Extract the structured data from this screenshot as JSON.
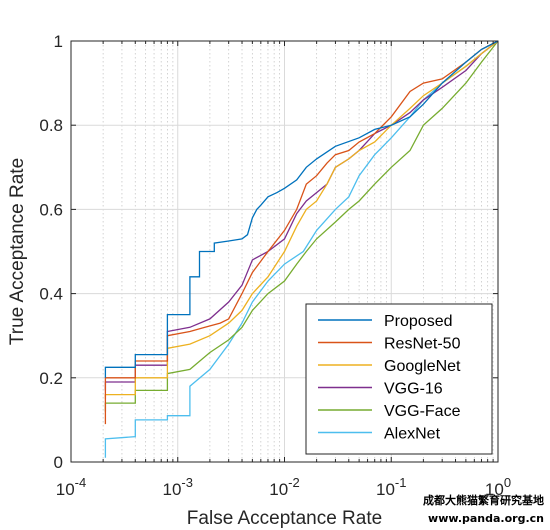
{
  "chart_data": {
    "type": "line",
    "xlabel": "False Acceptance Rate",
    "ylabel": "True Acceptance Rate",
    "xscale": "log",
    "xlim": [
      0.0001,
      1
    ],
    "ylim": [
      0,
      1
    ],
    "x_ticks": [
      {
        "value": 0.0001,
        "base": "10",
        "exp": "-4"
      },
      {
        "value": 0.001,
        "base": "10",
        "exp": "-3"
      },
      {
        "value": 0.01,
        "base": "10",
        "exp": "-2"
      },
      {
        "value": 0.1,
        "base": "10",
        "exp": "-1"
      },
      {
        "value": 1,
        "base": "10",
        "exp": "0"
      }
    ],
    "y_ticks": [
      {
        "value": 0,
        "label": "0"
      },
      {
        "value": 0.2,
        "label": "0.2"
      },
      {
        "value": 0.4,
        "label": "0.4"
      },
      {
        "value": 0.6,
        "label": "0.6"
      },
      {
        "value": 0.8,
        "label": "0.8"
      },
      {
        "value": 1,
        "label": "1"
      }
    ],
    "grid": true,
    "legend_position": "bottom-right",
    "series": [
      {
        "name": "Proposed",
        "color": "#0072BD",
        "points": [
          [
            0.00021,
            0.2
          ],
          [
            0.00021,
            0.225
          ],
          [
            0.0004,
            0.225
          ],
          [
            0.0004,
            0.255
          ],
          [
            0.0008,
            0.255
          ],
          [
            0.0008,
            0.35
          ],
          [
            0.0013,
            0.35
          ],
          [
            0.0013,
            0.44
          ],
          [
            0.0016,
            0.44
          ],
          [
            0.0016,
            0.5
          ],
          [
            0.0022,
            0.5
          ],
          [
            0.0022,
            0.52
          ],
          [
            0.003,
            0.525
          ],
          [
            0.004,
            0.53
          ],
          [
            0.0045,
            0.54
          ],
          [
            0.005,
            0.58
          ],
          [
            0.0055,
            0.6
          ],
          [
            0.006,
            0.61
          ],
          [
            0.007,
            0.63
          ],
          [
            0.0085,
            0.64
          ],
          [
            0.01,
            0.65
          ],
          [
            0.013,
            0.67
          ],
          [
            0.016,
            0.7
          ],
          [
            0.02,
            0.72
          ],
          [
            0.03,
            0.75
          ],
          [
            0.05,
            0.77
          ],
          [
            0.07,
            0.79
          ],
          [
            0.1,
            0.8
          ],
          [
            0.15,
            0.82
          ],
          [
            0.2,
            0.85
          ],
          [
            0.3,
            0.9
          ],
          [
            0.5,
            0.95
          ],
          [
            0.7,
            0.98
          ],
          [
            1,
            1
          ]
        ]
      },
      {
        "name": "ResNet-50",
        "color": "#D95319",
        "points": [
          [
            0.00021,
            0.09
          ],
          [
            0.00021,
            0.2
          ],
          [
            0.0004,
            0.2
          ],
          [
            0.0004,
            0.24
          ],
          [
            0.0008,
            0.24
          ],
          [
            0.0008,
            0.3
          ],
          [
            0.0013,
            0.31
          ],
          [
            0.0018,
            0.32
          ],
          [
            0.0025,
            0.33
          ],
          [
            0.003,
            0.34
          ],
          [
            0.004,
            0.4
          ],
          [
            0.005,
            0.45
          ],
          [
            0.007,
            0.5
          ],
          [
            0.01,
            0.55
          ],
          [
            0.013,
            0.6
          ],
          [
            0.016,
            0.66
          ],
          [
            0.02,
            0.68
          ],
          [
            0.025,
            0.71
          ],
          [
            0.03,
            0.73
          ],
          [
            0.04,
            0.74
          ],
          [
            0.05,
            0.76
          ],
          [
            0.07,
            0.78
          ],
          [
            0.1,
            0.82
          ],
          [
            0.15,
            0.88
          ],
          [
            0.2,
            0.9
          ],
          [
            0.3,
            0.91
          ],
          [
            0.5,
            0.95
          ],
          [
            0.7,
            0.98
          ],
          [
            1,
            1
          ]
        ]
      },
      {
        "name": "GoogleNet",
        "color": "#EDB120",
        "points": [
          [
            0.00021,
            0.15
          ],
          [
            0.00021,
            0.16
          ],
          [
            0.0004,
            0.16
          ],
          [
            0.0004,
            0.2
          ],
          [
            0.0008,
            0.2
          ],
          [
            0.0008,
            0.27
          ],
          [
            0.0013,
            0.28
          ],
          [
            0.002,
            0.3
          ],
          [
            0.003,
            0.33
          ],
          [
            0.004,
            0.36
          ],
          [
            0.005,
            0.4
          ],
          [
            0.007,
            0.44
          ],
          [
            0.01,
            0.5
          ],
          [
            0.013,
            0.56
          ],
          [
            0.016,
            0.6
          ],
          [
            0.02,
            0.62
          ],
          [
            0.025,
            0.66
          ],
          [
            0.03,
            0.7
          ],
          [
            0.04,
            0.72
          ],
          [
            0.05,
            0.74
          ],
          [
            0.07,
            0.76
          ],
          [
            0.1,
            0.8
          ],
          [
            0.15,
            0.84
          ],
          [
            0.2,
            0.87
          ],
          [
            0.3,
            0.9
          ],
          [
            0.5,
            0.94
          ],
          [
            0.7,
            0.97
          ],
          [
            1,
            1
          ]
        ]
      },
      {
        "name": "VGG-16",
        "color": "#7E2F8E",
        "points": [
          [
            0.00021,
            0.17
          ],
          [
            0.00021,
            0.19
          ],
          [
            0.0004,
            0.19
          ],
          [
            0.0004,
            0.23
          ],
          [
            0.0008,
            0.23
          ],
          [
            0.0008,
            0.31
          ],
          [
            0.0013,
            0.32
          ],
          [
            0.002,
            0.34
          ],
          [
            0.003,
            0.38
          ],
          [
            0.004,
            0.42
          ],
          [
            0.005,
            0.48
          ],
          [
            0.007,
            0.5
          ],
          [
            0.01,
            0.53
          ],
          [
            0.013,
            0.59
          ],
          [
            0.016,
            0.62
          ],
          [
            0.02,
            0.64
          ],
          [
            0.025,
            0.66
          ],
          [
            0.03,
            0.7
          ],
          [
            0.04,
            0.72
          ],
          [
            0.05,
            0.74
          ],
          [
            0.07,
            0.78
          ],
          [
            0.1,
            0.8
          ],
          [
            0.15,
            0.83
          ],
          [
            0.2,
            0.86
          ],
          [
            0.3,
            0.89
          ],
          [
            0.5,
            0.93
          ],
          [
            0.7,
            0.97
          ],
          [
            1,
            1
          ]
        ]
      },
      {
        "name": "VGG-Face",
        "color": "#77AC30",
        "points": [
          [
            0.00021,
            0.12
          ],
          [
            0.00021,
            0.14
          ],
          [
            0.0004,
            0.14
          ],
          [
            0.0004,
            0.17
          ],
          [
            0.0008,
            0.17
          ],
          [
            0.0008,
            0.21
          ],
          [
            0.0013,
            0.22
          ],
          [
            0.002,
            0.26
          ],
          [
            0.003,
            0.29
          ],
          [
            0.004,
            0.32
          ],
          [
            0.005,
            0.36
          ],
          [
            0.007,
            0.4
          ],
          [
            0.01,
            0.43
          ],
          [
            0.013,
            0.47
          ],
          [
            0.016,
            0.5
          ],
          [
            0.02,
            0.53
          ],
          [
            0.03,
            0.57
          ],
          [
            0.04,
            0.6
          ],
          [
            0.05,
            0.62
          ],
          [
            0.07,
            0.66
          ],
          [
            0.1,
            0.7
          ],
          [
            0.15,
            0.74
          ],
          [
            0.2,
            0.8
          ],
          [
            0.3,
            0.84
          ],
          [
            0.5,
            0.9
          ],
          [
            0.7,
            0.95
          ],
          [
            1,
            1
          ]
        ]
      },
      {
        "name": "AlexNet",
        "color": "#4DBEEE",
        "points": [
          [
            0.00021,
            0.01
          ],
          [
            0.00021,
            0.055
          ],
          [
            0.0004,
            0.06
          ],
          [
            0.0004,
            0.1
          ],
          [
            0.0008,
            0.1
          ],
          [
            0.0008,
            0.11
          ],
          [
            0.0013,
            0.11
          ],
          [
            0.0013,
            0.18
          ],
          [
            0.002,
            0.22
          ],
          [
            0.003,
            0.28
          ],
          [
            0.004,
            0.33
          ],
          [
            0.005,
            0.38
          ],
          [
            0.007,
            0.43
          ],
          [
            0.01,
            0.47
          ],
          [
            0.015,
            0.5
          ],
          [
            0.02,
            0.55
          ],
          [
            0.03,
            0.6
          ],
          [
            0.04,
            0.63
          ],
          [
            0.05,
            0.68
          ],
          [
            0.07,
            0.73
          ],
          [
            0.1,
            0.77
          ],
          [
            0.15,
            0.82
          ],
          [
            0.2,
            0.86
          ],
          [
            0.3,
            0.9
          ],
          [
            0.5,
            0.94
          ],
          [
            0.7,
            0.97
          ],
          [
            1,
            1
          ]
        ]
      }
    ]
  },
  "watermark": {
    "line1": "成都大熊猫繁育研究基地",
    "line2": "www.panda.org.cn"
  }
}
